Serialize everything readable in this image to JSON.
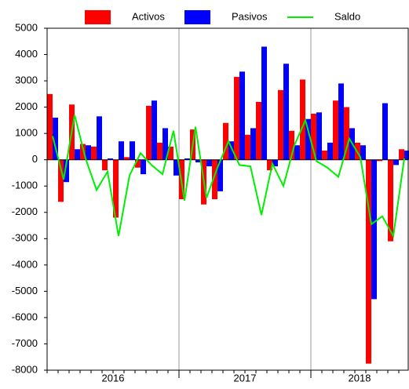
{
  "chart_data": {
    "type": "bar-line",
    "categories": [
      null,
      null,
      null,
      null,
      null,
      null,
      null,
      null,
      null,
      null,
      null,
      null,
      null,
      null,
      null,
      null,
      null,
      null,
      null,
      null,
      null,
      null,
      null,
      null,
      null,
      null,
      null,
      null,
      null,
      null,
      null,
      null,
      null
    ],
    "year_groups": [
      "2016",
      "2017",
      "2018"
    ],
    "series": [
      {
        "name": "Activos",
        "color": "#ff0000",
        "kind": "bar",
        "values": [
          2500,
          -1600,
          2100,
          600,
          500,
          -400,
          -2200,
          100,
          -300,
          2050,
          650,
          500,
          -1500,
          1150,
          -1700,
          -1500,
          1400,
          3150,
          950,
          2200,
          -400,
          2650,
          1100,
          3050,
          1750,
          350,
          2250,
          2000,
          650,
          -7750,
          -50,
          -3100,
          400
        ]
      },
      {
        "name": "Pasivos",
        "color": "#0000ff",
        "kind": "bar",
        "values": [
          1600,
          -850,
          400,
          550,
          1650,
          50,
          700,
          700,
          -550,
          2250,
          1200,
          -600,
          50,
          -100,
          -250,
          -1200,
          700,
          3350,
          1200,
          4300,
          -250,
          3650,
          550,
          1550,
          1800,
          650,
          2900,
          1200,
          550,
          -5300,
          2150,
          -200,
          350
        ]
      },
      {
        "name": "Saldo",
        "color": "#00ee00",
        "kind": "line",
        "values": [
          900,
          -750,
          1700,
          50,
          -1150,
          -450,
          -2900,
          -600,
          250,
          -200,
          -550,
          1100,
          -1550,
          1250,
          -1450,
          -300,
          700,
          -200,
          -250,
          -2100,
          -150,
          -1000,
          550,
          1500,
          -50,
          -300,
          -650,
          800,
          100,
          -2450,
          -2150,
          -2900,
          50
        ]
      }
    ],
    "ylim": [
      -8000,
      5000
    ],
    "yticks": [
      -8000,
      -7000,
      -6000,
      -5000,
      -4000,
      -3000,
      -2000,
      -1000,
      0,
      1000,
      2000,
      3000,
      4000,
      5000
    ]
  }
}
